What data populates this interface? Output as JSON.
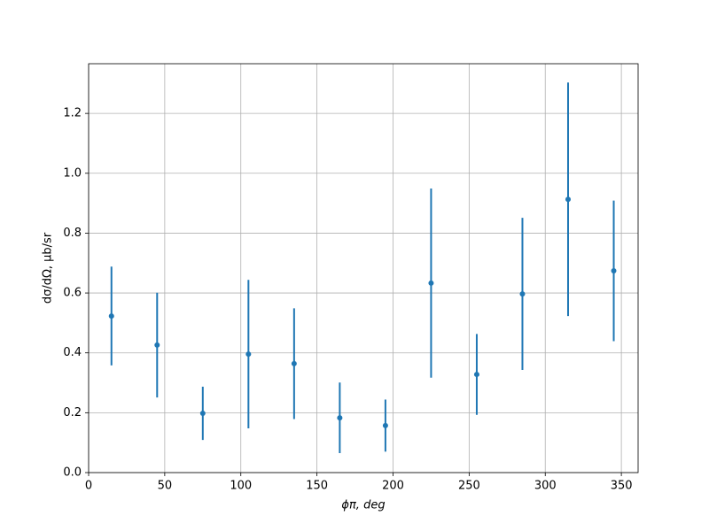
{
  "chart_data": {
    "type": "errorbar",
    "xlabel": "ϕπ, deg",
    "ylabel": "dσ/dΩ, μb/sr",
    "x": [
      15,
      45,
      75,
      105,
      135,
      165,
      195,
      225,
      255,
      285,
      315,
      345
    ],
    "series": [
      {
        "color": "#1f77b4",
        "values": [
          0.523,
          0.426,
          0.198,
          0.396,
          0.364,
          0.183,
          0.157,
          0.633,
          0.328,
          0.597,
          0.913,
          0.674
        ],
        "errors": [
          0.165,
          0.175,
          0.089,
          0.248,
          0.185,
          0.118,
          0.087,
          0.316,
          0.135,
          0.254,
          0.39,
          0.235
        ]
      }
    ],
    "xlim": [
      0,
      361
    ],
    "ylim": [
      0,
      1.366
    ],
    "xticks": [
      0,
      50,
      100,
      150,
      200,
      250,
      300,
      350
    ],
    "yticks": [
      {
        "value": 0,
        "label": "0.0"
      },
      0.2,
      0.4,
      0.6,
      0.8,
      {
        "value": 1,
        "label": "1.0"
      },
      1.2
    ],
    "grid": true
  }
}
